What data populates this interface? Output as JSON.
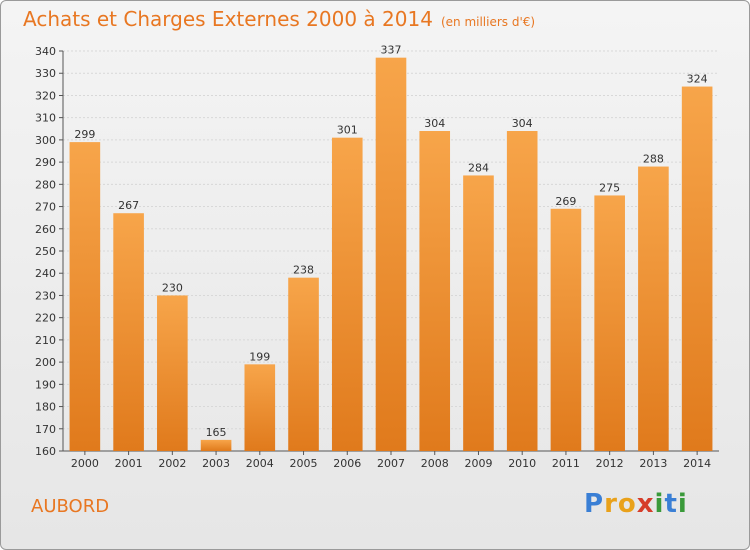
{
  "title": "Achats et Charges Externes 2000 à 2014",
  "subtitle": "(en milliers d'€)",
  "place": "AUBORD",
  "logo": {
    "text": "Proxiti",
    "colors": [
      "#3a7fd5",
      "#e9a11a",
      "#e9a11a",
      "#d63d2a",
      "#3a9a3a",
      "#3a7fd5",
      "#3a9a3a"
    ]
  },
  "colors": {
    "bar_light": "#f7a54a",
    "bar_dark": "#e07a1c",
    "title": "#e87722"
  },
  "chart_data": {
    "type": "bar",
    "title": "Achats et Charges Externes 2000 à 2014",
    "subtitle": "(en milliers d'€)",
    "categories": [
      "2000",
      "2001",
      "2002",
      "2003",
      "2004",
      "2005",
      "2006",
      "2007",
      "2008",
      "2009",
      "2010",
      "2011",
      "2012",
      "2013",
      "2014"
    ],
    "values": [
      299,
      267,
      230,
      165,
      199,
      238,
      301,
      337,
      304,
      284,
      304,
      269,
      275,
      288,
      324
    ],
    "ylim": [
      160,
      340
    ],
    "yticks": [
      160,
      170,
      180,
      190,
      200,
      210,
      220,
      230,
      240,
      250,
      260,
      270,
      280,
      290,
      300,
      310,
      320,
      330,
      340
    ],
    "grid": true,
    "legend": "none"
  }
}
